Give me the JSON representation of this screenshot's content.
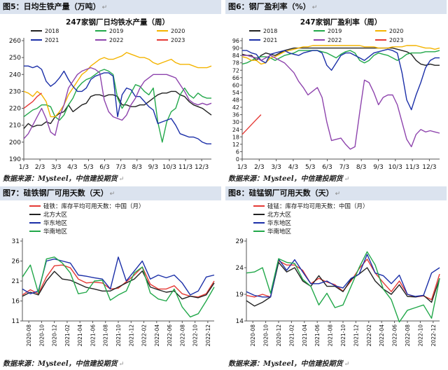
{
  "panels": [
    {
      "fig_title": "图5：日均生铁产量（万吨）",
      "source": "数据来源：Mysteel，中信建投期货",
      "chart": {
        "type": "line",
        "title": "247家钢厂日均铁水产量（周）",
        "x_ticks": [
          "1/3",
          "2/3",
          "3/3",
          "4/3",
          "5/3",
          "6/3",
          "7/3",
          "8/3",
          "9/3",
          "10/3",
          "11/3",
          "12/3"
        ],
        "ylim": [
          190,
          260
        ],
        "y_ticks": [
          190,
          200,
          210,
          220,
          230,
          240,
          250,
          260
        ],
        "legend": "top",
        "series": [
          {
            "name": "2018",
            "color": "#222222",
            "values": [
              208,
              211,
              209,
              210,
              210,
              212,
              211,
              215,
              217,
              218,
              222,
              218,
              220,
              222,
              223,
              227,
              228,
              228,
              227,
              228,
              228,
              227,
              222,
              222,
              221,
              221,
              222,
              222,
              224,
              226,
              228,
              229,
              229,
              230,
              230,
              228,
              227,
              224,
              222,
              221,
              220,
              218,
              216
            ]
          },
          {
            "name": "2019",
            "color": "#22a84a",
            "values": [
              215,
              217,
              219,
              220,
              222,
              222,
              221,
              215,
              213,
              216,
              222,
              226,
              232,
              235,
              237,
              238,
              240,
              242,
              243,
              242,
              240,
              226,
              220,
              224,
              229,
              234,
              233,
              230,
              228,
              232,
              212,
              200,
              212,
              218,
              220,
              228,
              232,
              228,
              226,
              229,
              227,
              226,
              226
            ]
          },
          {
            "name": "2020",
            "color": "#f4b400",
            "values": [
              230,
              229,
              227,
              230,
              228,
              224,
              215,
              215,
              218,
              222,
              228,
              232,
              236,
              240,
              242,
              245,
              247,
              249,
              250,
              249,
              249,
              250,
              251,
              253,
              252,
              251,
              250,
              250,
              249,
              247,
              246,
              247,
              248,
              249,
              247,
              246,
              246,
              246,
              245,
              244,
              244,
              244,
              245
            ]
          },
          {
            "name": "2021",
            "color": "#1b2fa8",
            "values": [
              245,
              245,
              244,
              245,
              243,
              236,
              233,
              235,
              238,
              242,
              237,
              233,
              230,
              230,
              232,
              237,
              239,
              240,
              241,
              241,
              239,
              215,
              228,
              232,
              231,
              227,
              227,
              224,
              221,
              219,
              211,
              212,
              213,
              214,
              210,
              205,
              204,
              203,
              203,
              202,
              200,
              199,
              199
            ]
          },
          {
            "name": "2022",
            "color": "#8e44ad",
            "values": [
              202,
              205,
              210,
              215,
              220,
              214,
              206,
              204,
              215,
              222,
              232,
              236,
              240,
              242,
              243,
              244,
              243,
              241,
              225,
              218,
              215,
              214,
              213,
              216,
              222,
              226,
              232,
              236,
              238,
              240,
              240,
              240,
              240,
              239,
              238,
              234,
              230,
              225,
              223,
              222,
              223,
              222,
              223
            ]
          },
          {
            "name": "2023",
            "color": "#e53935",
            "values": [
              220,
              222,
              224,
              227,
              229
            ]
          }
        ]
      }
    },
    {
      "fig_title": "图6：钢厂盈利率（%）",
      "source": "数据来源：Mysteel，中信建投期货",
      "chart": {
        "type": "line",
        "title": "247家钢厂盈利率（周）",
        "x_ticks": [
          "1/3",
          "2/3",
          "3/3",
          "4/3",
          "5/3",
          "6/3",
          "7/3",
          "8/3",
          "9/3",
          "10/3",
          "11/3",
          "12/3"
        ],
        "ylim": [
          0,
          96
        ],
        "y_ticks": [
          0,
          6,
          12,
          18,
          24,
          30,
          36,
          42,
          48,
          54,
          60,
          66,
          72,
          78,
          84,
          90,
          96
        ],
        "legend": "top",
        "series": [
          {
            "name": "2018",
            "color": "#222222",
            "values": [
              85,
              84,
              84,
              80,
              84,
              86,
              85,
              84,
              86,
              88,
              89,
              90,
              90,
              90,
              90,
              90,
              90,
              90,
              90,
              90,
              90,
              90,
              90,
              90,
              90,
              90,
              90,
              90,
              90,
              90,
              90,
              90,
              90,
              89,
              88,
              87,
              85,
              80,
              77,
              76,
              77,
              76,
              76
            ]
          },
          {
            "name": "2019",
            "color": "#22a84a",
            "values": [
              77,
              78,
              80,
              82,
              83,
              83,
              82,
              80,
              82,
              84,
              85,
              86,
              88,
              88,
              88,
              88,
              88,
              87,
              86,
              84,
              82,
              85,
              87,
              88,
              86,
              80,
              78,
              80,
              84,
              86,
              85,
              84,
              82,
              80,
              82,
              85,
              86,
              86,
              86,
              87,
              87,
              87,
              88
            ]
          },
          {
            "name": "2020",
            "color": "#f4b400",
            "values": [
              83,
              82,
              80,
              80,
              77,
              78,
              82,
              83,
              85,
              87,
              88,
              89,
              90,
              91,
              91,
              92,
              92,
              92,
              92,
              92,
              92,
              92,
              92,
              92,
              92,
              92,
              91,
              91,
              91,
              90,
              90,
              90,
              91,
              91,
              91,
              92,
              92,
              92,
              91,
              90,
              90,
              89,
              90
            ]
          },
          {
            "name": "2021",
            "color": "#1b2fa8",
            "values": [
              88,
              88,
              86,
              85,
              80,
              78,
              85,
              86,
              87,
              88,
              86,
              85,
              84,
              86,
              87,
              88,
              88,
              86,
              76,
              72,
              78,
              84,
              86,
              86,
              84,
              82,
              80,
              83,
              86,
              87,
              88,
              89,
              88,
              86,
              70,
              48,
              40,
              52,
              62,
              74,
              80,
              82,
              82
            ]
          },
          {
            "name": "2022",
            "color": "#8e44ad",
            "values": [
              84,
              84,
              83,
              82,
              80,
              82,
              84,
              82,
              80,
              78,
              74,
              70,
              63,
              58,
              52,
              55,
              58,
              50,
              30,
              15,
              16,
              17,
              12,
              8,
              10,
              38,
              64,
              62,
              54,
              44,
              50,
              52,
              52,
              44,
              30,
              16,
              10,
              20,
              24,
              22,
              23,
              22,
              21
            ]
          },
          {
            "name": "2023",
            "color": "#e53935",
            "values": [
              20,
              24,
              28,
              32,
              36
            ]
          }
        ]
      }
    },
    {
      "fig_title": "图7：硅铁钢厂可用天数（天）",
      "source": "数据来源：Mysteel，中信建投期货",
      "chart": {
        "type": "line",
        "x_ticks": [
          "2020-08",
          "2020-10",
          "2020-12",
          "2021-02",
          "2021-04",
          "2021-06",
          "2021-08",
          "2021-10",
          "2021-12",
          "2022-02",
          "2022-04",
          "2022-06",
          "2022-08",
          "2022-10",
          "2022-12"
        ],
        "ylim": [
          11,
          31
        ],
        "y_ticks": [
          11,
          16,
          21,
          26,
          31
        ],
        "legend": "top-left",
        "series": [
          {
            "name": "硅铁：库存平均可用天数：中国（月）",
            "color": "#e53935",
            "values": [
              17.5,
              18.8,
              17.8,
              22,
              24.8,
              25,
              24.3,
              21.5,
              20.5,
              20.7,
              20.5,
              19,
              19.2,
              20.8,
              22.5,
              24.5,
              20.2,
              19,
              19,
              19.8,
              17.8,
              17.2,
              17,
              17.8,
              21
            ]
          },
          {
            "name": "北方大区",
            "color": "#222222",
            "values": [
              17.2,
              18.2,
              17.5,
              21,
              23.4,
              21.5,
              21.2,
              20.3,
              19.4,
              19,
              18.5,
              18.5,
              19.5,
              20.5,
              21.5,
              23.5,
              19.5,
              18.8,
              18.2,
              18.5,
              16.5,
              17.2,
              16.8,
              17.5,
              20.5
            ]
          },
          {
            "name": "华东地区",
            "color": "#1b2fa8",
            "values": [
              19,
              17.8,
              18.5,
              26,
              26.5,
              26,
              25.5,
              22.5,
              22.2,
              21.8,
              21.5,
              19,
              27,
              21,
              23.5,
              26,
              21.5,
              22.5,
              21.8,
              22.5,
              20.5,
              17.5,
              18.5,
              22,
              22.5
            ]
          },
          {
            "name": "华南地区",
            "color": "#22a84a",
            "values": [
              22,
              25,
              18,
              26.5,
              27,
              25.5,
              23,
              17.8,
              18.2,
              21,
              21.2,
              16.2,
              17.5,
              18.5,
              23,
              24.5,
              18,
              16.5,
              16,
              19,
              14.5,
              12,
              12.8,
              16,
              19.5
            ]
          }
        ]
      }
    },
    {
      "fig_title": "图8：硅锰钢厂可用天数（天）",
      "source": "数据来源：Mysteel，中信建投期货",
      "chart": {
        "type": "line",
        "x_ticks": [
          "2020-08",
          "2020-10",
          "2020-12",
          "2021-02",
          "2021-04",
          "2021-06",
          "2021-08",
          "2021-10",
          "2021-12",
          "2022-02",
          "2022-04",
          "2022-06",
          "2022-08",
          "2022-10",
          "2022-12"
        ],
        "ylim": [
          14,
          29
        ],
        "y_ticks": [
          14,
          19,
          24,
          29
        ],
        "legend": "top-left",
        "series": [
          {
            "name": "硅锰：库存平均可用天数：中国（月）",
            "color": "#e53935",
            "values": [
              18.8,
              18.5,
              19,
              18.5,
              25.3,
              24.5,
              24.5,
              23.5,
              21,
              22,
              21.3,
              20.8,
              19.6,
              21.5,
              23.8,
              25.6,
              23,
              21.2,
              19.5,
              21.5,
              19,
              18.5,
              18.7,
              18,
              22.8
            ]
          },
          {
            "name": "北方大区",
            "color": "#222222",
            "values": [
              17.8,
              16.8,
              17.5,
              18.5,
              25,
              23.2,
              24,
              21.5,
              20.5,
              22.5,
              20.5,
              20.5,
              19.5,
              21.8,
              22.8,
              24,
              21.5,
              20,
              19,
              20.8,
              18.6,
              18.5,
              18.8,
              17.5,
              22
            ]
          },
          {
            "name": "华东地区",
            "color": "#1b2fa8",
            "values": [
              19.5,
              18.8,
              18.5,
              18.5,
              25.6,
              23.5,
              25.5,
              23.2,
              21,
              21,
              21.5,
              20.6,
              20.2,
              22,
              22.8,
              26.5,
              23,
              22.5,
              21,
              22.6,
              19,
              18.6,
              18.8,
              23,
              24
            ]
          },
          {
            "name": "华南地区",
            "color": "#22a84a",
            "values": [
              23,
              23.2,
              24,
              19.2,
              25.7,
              25,
              24.8,
              21.8,
              20.5,
              17,
              19.2,
              16.5,
              17,
              20.5,
              24,
              27,
              24.5,
              20,
              18,
              13.8,
              16,
              16.5,
              17,
              14.5,
              22
            ]
          }
        ]
      }
    }
  ]
}
